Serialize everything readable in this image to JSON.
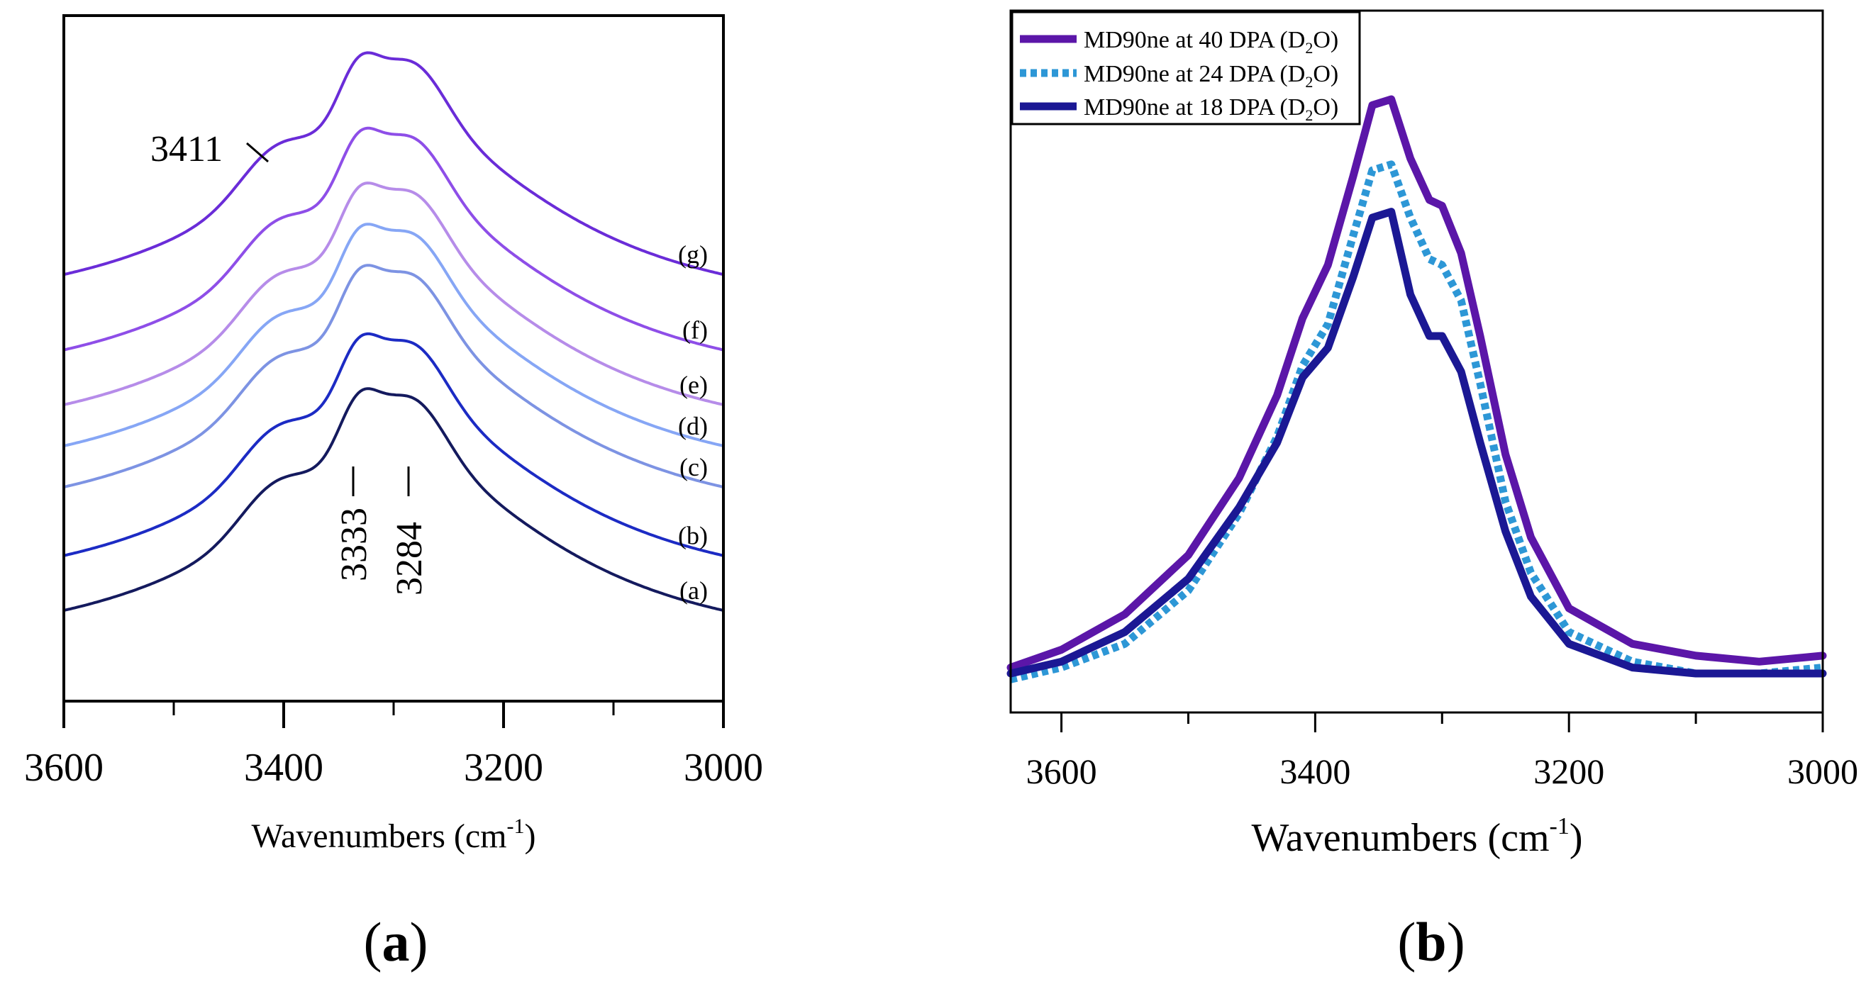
{
  "chart_data": [
    {
      "panel": "a",
      "type": "line",
      "xlabel": "Wavenumbers (cm",
      "xlabel_sup": "-1",
      "xlabel_close": ")",
      "xlim": [
        3600,
        3000
      ],
      "xticks": [
        3600,
        3400,
        3200,
        3000
      ],
      "ylabel": "",
      "y_axis_ticks": false,
      "grid": false,
      "caption_label": "a",
      "annotations": [
        {
          "text": "3411",
          "x": 3411,
          "orientation": "horizontal"
        },
        {
          "text": "3333",
          "x": 3333,
          "orientation": "vertical"
        },
        {
          "text": "3284",
          "x": 3284,
          "orientation": "vertical"
        }
      ],
      "note": "stacked spectra, arbitrary vertical offsets (y in relative units 0-100, axis range 0-100)",
      "ylim": [
        0,
        100
      ],
      "peak_positions": [
        3333,
        3284
      ],
      "series": [
        {
          "name": "(g)",
          "label": "(g)",
          "color": "#6a2cd8",
          "offset": 55
        },
        {
          "name": "(f)",
          "label": "(f)",
          "color": "#8e4ee8",
          "offset": 44
        },
        {
          "name": "(e)",
          "label": "(e)",
          "color": "#b68ce9",
          "offset": 36
        },
        {
          "name": "(d)",
          "label": "(d)",
          "color": "#86a6f5",
          "offset": 30
        },
        {
          "name": "(c)",
          "label": "(c)",
          "color": "#7d93e3",
          "offset": 24
        },
        {
          "name": "(b)",
          "label": "(b)",
          "color": "#1c2bc4",
          "offset": 14
        },
        {
          "name": "(a)",
          "label": "(a)",
          "color": "#141a5e",
          "offset": 6
        }
      ]
    },
    {
      "panel": "b",
      "type": "line",
      "xlabel": "Wavenumbers (cm",
      "xlabel_sup": "-1",
      "xlabel_close": ")",
      "xlim": [
        3640,
        3000
      ],
      "xticks": [
        3600,
        3400,
        3200,
        3000
      ],
      "ylabel": "",
      "y_axis_ticks": false,
      "grid": false,
      "legend_position": "top-left",
      "caption_label": "b",
      "ylim": [
        0,
        1
      ],
      "series": [
        {
          "name": "MD90ne at 40 DPA (D",
          "sub": "2",
          "tail": "O)",
          "color": "#5b16a8",
          "style": "solid",
          "x": [
            3640,
            3600,
            3550,
            3500,
            3460,
            3430,
            3410,
            3390,
            3370,
            3355,
            3340,
            3325,
            3310,
            3300,
            3285,
            3270,
            3250,
            3230,
            3200,
            3150,
            3100,
            3050,
            3000
          ],
          "y": [
            0.04,
            0.07,
            0.13,
            0.23,
            0.36,
            0.5,
            0.63,
            0.72,
            0.87,
            0.99,
            1.0,
            0.9,
            0.83,
            0.82,
            0.74,
            0.6,
            0.4,
            0.26,
            0.14,
            0.08,
            0.06,
            0.05,
            0.06
          ]
        },
        {
          "name": "MD90ne at 24 DPA (D",
          "sub": "2",
          "tail": "O)",
          "color": "#2d97d6",
          "style": "dotted",
          "x": [
            3640,
            3600,
            3550,
            3500,
            3460,
            3430,
            3410,
            3390,
            3370,
            3355,
            3340,
            3325,
            3310,
            3300,
            3285,
            3270,
            3250,
            3230,
            3200,
            3150,
            3100,
            3050,
            3000
          ],
          "y": [
            0.02,
            0.04,
            0.08,
            0.17,
            0.3,
            0.43,
            0.55,
            0.62,
            0.77,
            0.88,
            0.89,
            0.8,
            0.73,
            0.72,
            0.66,
            0.52,
            0.32,
            0.2,
            0.1,
            0.05,
            0.03,
            0.03,
            0.04
          ]
        },
        {
          "name": "MD90ne at 18 DPA (D",
          "sub": "2",
          "tail": "O)",
          "color": "#1b1894",
          "style": "solid",
          "x": [
            3640,
            3600,
            3550,
            3500,
            3460,
            3430,
            3410,
            3390,
            3370,
            3355,
            3340,
            3325,
            3310,
            3300,
            3285,
            3270,
            3250,
            3230,
            3200,
            3150,
            3100,
            3050,
            3000
          ],
          "y": [
            0.03,
            0.05,
            0.1,
            0.19,
            0.31,
            0.42,
            0.53,
            0.58,
            0.7,
            0.8,
            0.81,
            0.67,
            0.6,
            0.6,
            0.54,
            0.42,
            0.27,
            0.16,
            0.08,
            0.04,
            0.03,
            0.03,
            0.03
          ]
        }
      ]
    }
  ]
}
